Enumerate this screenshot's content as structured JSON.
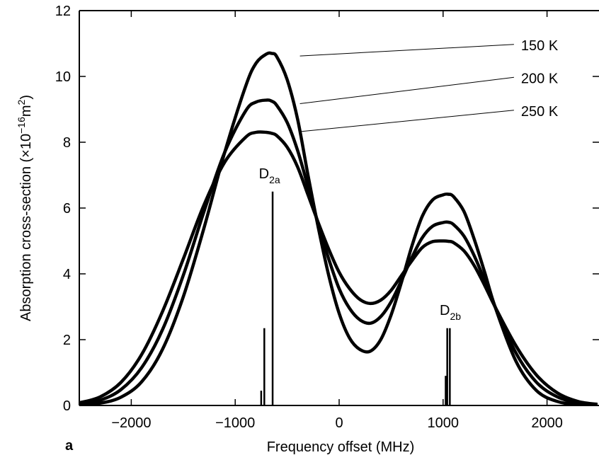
{
  "chart_data": {
    "type": "line",
    "panel_label": "a",
    "xlabel": "Frequency offset (MHz)",
    "ylabel": {
      "pre": "Absorption cross-section (",
      "times": "×",
      "base": "10",
      "exp": "−16",
      "unit": "m",
      "unit_exp": "2",
      "post": ")"
    },
    "xlim": [
      -2500,
      2500
    ],
    "ylim": [
      0,
      12
    ],
    "xticks": [
      -2000,
      -1000,
      0,
      1000,
      2000
    ],
    "xtick_labels": [
      "−2000",
      "−1000",
      "0",
      "1000",
      "2000"
    ],
    "yticks": [
      0,
      2,
      4,
      6,
      8,
      10,
      12
    ],
    "ytick_labels": [
      "0",
      "2",
      "4",
      "6",
      "8",
      "10",
      "12"
    ],
    "series": [
      {
        "name": "150 K",
        "x": [
          -2500,
          -2300,
          -2100,
          -1900,
          -1700,
          -1500,
          -1300,
          -1100,
          -900,
          -800,
          -700,
          -650,
          -600,
          -500,
          -400,
          -300,
          -200,
          -100,
          0,
          100,
          200,
          300,
          400,
          500,
          600,
          700,
          800,
          900,
          1000,
          1050,
          1100,
          1200,
          1300,
          1400,
          1500,
          1700,
          1900,
          2100,
          2300,
          2500
        ],
        "y": [
          0.02,
          0.07,
          0.25,
          0.72,
          1.7,
          3.3,
          5.4,
          7.7,
          9.7,
          10.4,
          10.68,
          10.7,
          10.6,
          9.9,
          8.7,
          7.0,
          5.4,
          3.95,
          2.8,
          2.05,
          1.7,
          1.65,
          2.0,
          2.75,
          3.75,
          4.85,
          5.75,
          6.25,
          6.4,
          6.42,
          6.35,
          5.9,
          5.05,
          4.05,
          3.0,
          1.35,
          0.45,
          0.12,
          0.03,
          0.01
        ]
      },
      {
        "name": "200 K",
        "x": [
          -2500,
          -2300,
          -2100,
          -1900,
          -1700,
          -1500,
          -1300,
          -1100,
          -900,
          -800,
          -700,
          -650,
          -600,
          -500,
          -400,
          -300,
          -200,
          -100,
          0,
          100,
          200,
          300,
          400,
          500,
          600,
          700,
          800,
          900,
          1000,
          1050,
          1100,
          1200,
          1300,
          1400,
          1500,
          1700,
          1900,
          2100,
          2300,
          2500
        ],
        "y": [
          0.05,
          0.16,
          0.48,
          1.15,
          2.3,
          3.95,
          5.9,
          7.7,
          8.95,
          9.22,
          9.28,
          9.25,
          9.12,
          8.6,
          7.75,
          6.65,
          5.5,
          4.45,
          3.55,
          2.95,
          2.6,
          2.5,
          2.7,
          3.15,
          3.8,
          4.5,
          5.1,
          5.45,
          5.56,
          5.57,
          5.5,
          5.15,
          4.55,
          3.8,
          3.0,
          1.6,
          0.7,
          0.26,
          0.08,
          0.02
        ]
      },
      {
        "name": "250 K",
        "x": [
          -2500,
          -2300,
          -2100,
          -1900,
          -1700,
          -1500,
          -1300,
          -1100,
          -900,
          -800,
          -700,
          -650,
          -600,
          -500,
          -400,
          -300,
          -200,
          -100,
          0,
          100,
          200,
          300,
          400,
          500,
          600,
          700,
          800,
          900,
          1000,
          1050,
          1100,
          1200,
          1300,
          1400,
          1500,
          1700,
          1900,
          2100,
          2300,
          2500
        ],
        "y": [
          0.08,
          0.26,
          0.7,
          1.55,
          2.85,
          4.45,
          6.1,
          7.4,
          8.15,
          8.3,
          8.3,
          8.27,
          8.2,
          7.85,
          7.25,
          6.4,
          5.55,
          4.75,
          4.05,
          3.55,
          3.22,
          3.1,
          3.2,
          3.5,
          3.95,
          4.4,
          4.8,
          4.98,
          5.0,
          4.99,
          4.95,
          4.7,
          4.25,
          3.65,
          3.0,
          1.82,
          0.92,
          0.38,
          0.12,
          0.03
        ]
      }
    ],
    "stick_groups": [
      {
        "label_base": "D",
        "label_sub": "2a",
        "label_at": [
          -670,
          6.9
        ],
        "lines": [
          {
            "x": -750,
            "height": 0.45
          },
          {
            "x": -720,
            "height": 2.35
          },
          {
            "x": -640,
            "height": 6.5
          }
        ]
      },
      {
        "label_base": "D",
        "label_sub": "2b",
        "label_at": [
          1070,
          2.75
        ],
        "lines": [
          {
            "x": 1025,
            "height": 0.9
          },
          {
            "x": 1040,
            "height": 2.35
          },
          {
            "x": 1065,
            "height": 2.35
          }
        ]
      }
    ],
    "annotations": [
      {
        "text": "150 K",
        "series": "150 K",
        "point": [
          -500,
          10.6
        ],
        "text_at": [
          1750,
          10.8
        ]
      },
      {
        "text": "200 K",
        "series": "200 K",
        "point": [
          -500,
          9.15
        ],
        "text_at": [
          1750,
          9.8
        ]
      },
      {
        "text": "250 K",
        "series": "250 K",
        "point": [
          -500,
          8.3
        ],
        "text_at": [
          1750,
          8.8
        ]
      }
    ]
  }
}
